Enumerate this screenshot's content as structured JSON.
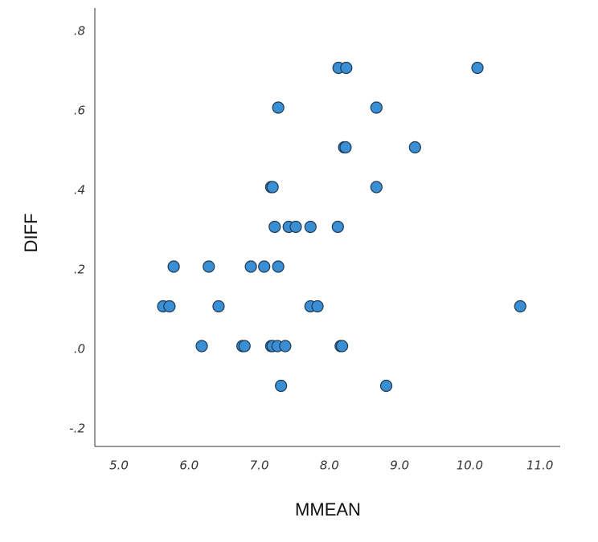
{
  "chart_data": {
    "type": "scatter",
    "x_label": "MMEAN",
    "y_label": "DIFF",
    "color": "#3a8fd4",
    "xlim": [
      4.656,
      11.29
    ],
    "ylim": [
      -0.2525,
      0.8505
    ],
    "xticks": [
      {
        "value": 5,
        "label": "5.0"
      },
      {
        "value": 6,
        "label": "6.0"
      },
      {
        "value": 7,
        "label": "7.0"
      },
      {
        "value": 8,
        "label": "8.0"
      },
      {
        "value": 9,
        "label": "9.0"
      },
      {
        "value": 10,
        "label": "10.0"
      },
      {
        "value": 11,
        "label": "11.0"
      }
    ],
    "yticks": [
      {
        "value": -0.2,
        "label": "-.2"
      },
      {
        "value": 0,
        "label": ".0"
      },
      {
        "value": 0.2,
        "label": ".2"
      },
      {
        "value": 0.4,
        "label": ".4"
      },
      {
        "value": 0.6,
        "label": ".6"
      },
      {
        "value": 0.8,
        "label": ".8"
      }
    ],
    "x": [
      8.13,
      8.24,
      10.11,
      7.27,
      8.67,
      8.21,
      8.23,
      9.22,
      7.17,
      7.19,
      8.67,
      7.22,
      7.42,
      7.52,
      7.73,
      8.12,
      5.78,
      6.28,
      6.88,
      7.07,
      7.27,
      5.63,
      5.72,
      6.42,
      7.73,
      7.83,
      10.72,
      6.18,
      6.76,
      6.79,
      7.17,
      7.19,
      7.26,
      7.37,
      8.16,
      8.18,
      7.31,
      8.81
    ],
    "values": [
      0.7,
      0.7,
      0.7,
      0.6,
      0.6,
      0.5,
      0.5,
      0.5,
      0.4,
      0.4,
      0.4,
      0.3,
      0.3,
      0.3,
      0.3,
      0.3,
      0.2,
      0.2,
      0.2,
      0.2,
      0.2,
      0.1,
      0.1,
      0.1,
      0.1,
      0.1,
      0.1,
      0,
      0,
      0,
      0,
      0,
      0,
      0,
      0,
      0,
      -0.1,
      -0.1
    ]
  }
}
